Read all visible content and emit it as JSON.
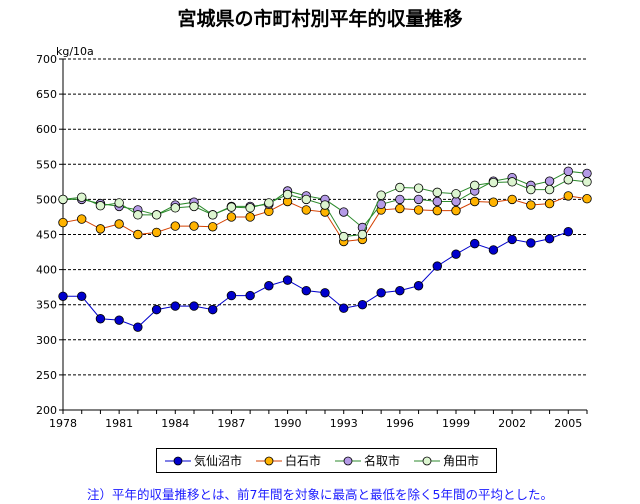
{
  "chart_data": {
    "type": "line",
    "title": "宮城県の市町村別平年的収量推移",
    "ylabel": "kg/10a",
    "xlabel": "",
    "ylim": [
      200,
      700
    ],
    "yticks": [
      200,
      250,
      300,
      350,
      400,
      450,
      500,
      550,
      600,
      650,
      700
    ],
    "xlim": [
      1978,
      2006
    ],
    "xticks": [
      1978,
      1981,
      1984,
      1987,
      1990,
      1993,
      1996,
      1999,
      2002,
      2005
    ],
    "grid": "horizontal-dashed",
    "legend_position": "bottom",
    "x": [
      1978,
      1979,
      1980,
      1981,
      1982,
      1983,
      1984,
      1985,
      1986,
      1987,
      1988,
      1989,
      1990,
      1991,
      1992,
      1993,
      1994,
      1995,
      1996,
      1997,
      1998,
      1999,
      2000,
      2001,
      2002,
      2003,
      2004,
      2005,
      2006
    ],
    "series": [
      {
        "name": "気仙沼市",
        "color": "#0000cc",
        "values": [
          362,
          362,
          330,
          328,
          318,
          343,
          348,
          348,
          343,
          363,
          363,
          377,
          385,
          370,
          367,
          345,
          350,
          367,
          370,
          377,
          405,
          422,
          437,
          428,
          443,
          438,
          444,
          454,
          null
        ]
      },
      {
        "name": "白石市",
        "color": "#ffb300",
        "values": [
          467,
          472,
          458,
          465,
          450,
          453,
          462,
          462,
          461,
          475,
          475,
          483,
          497,
          485,
          482,
          440,
          443,
          485,
          487,
          485,
          484,
          484,
          497,
          496,
          500,
          492,
          494,
          505,
          501
        ]
      },
      {
        "name": "名取市",
        "color": "#b49ae6",
        "values": [
          500,
          500,
          494,
          490,
          485,
          478,
          492,
          496,
          478,
          490,
          490,
          493,
          512,
          505,
          500,
          482,
          460,
          493,
          500,
          500,
          497,
          497,
          512,
          526,
          531,
          520,
          526,
          540,
          537
        ]
      },
      {
        "name": "角田市",
        "color": "#dcf5d0",
        "values": [
          500,
          503,
          491,
          495,
          478,
          478,
          488,
          490,
          478,
          489,
          488,
          495,
          507,
          500,
          492,
          447,
          450,
          506,
          517,
          516,
          510,
          508,
          520,
          524,
          525,
          514,
          514,
          528,
          525
        ]
      }
    ]
  },
  "footnote": "注）平年的収量推移とは、前7年間を対象に最高と最低を除く5年間の平均とした。"
}
